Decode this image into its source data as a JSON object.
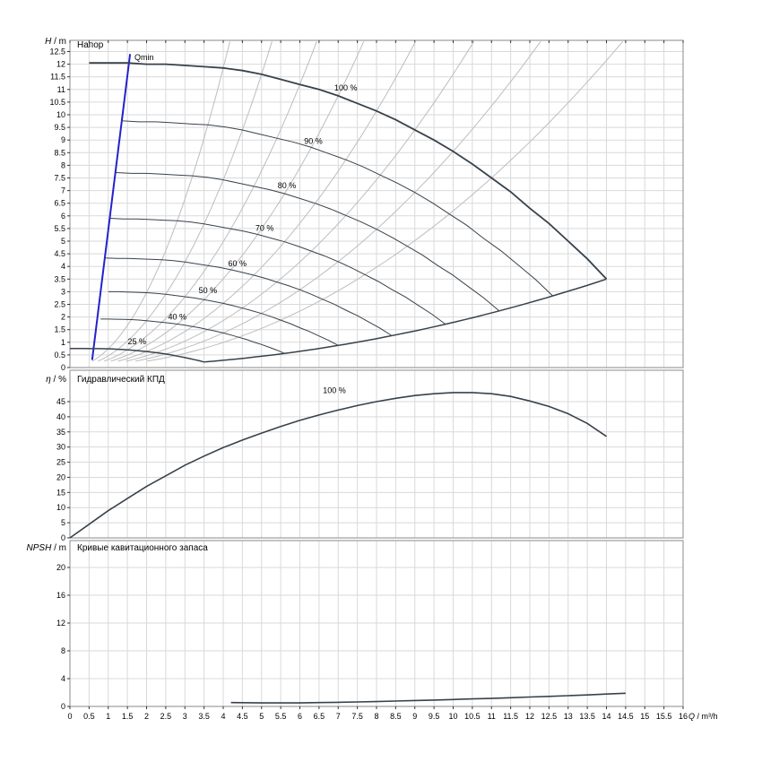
{
  "axis_x": {
    "label_symbol": "Q",
    "label_unit": " / m³/h",
    "min": 0,
    "max": 16,
    "step": 0.5
  },
  "style": {
    "curve_color": "#37424c",
    "grid_color": "#d9d9d9",
    "contour_color": "#bdbdbd",
    "frame_color": "#8a8a8a",
    "qmin_color": "#2222cc",
    "text_color": "#000000"
  },
  "chart_data": [
    {
      "id": "head",
      "type": "line",
      "title": "Напор",
      "ylabel_symbol": "H",
      "ylabel_unit": " / m",
      "ylim": [
        0,
        12.9
      ],
      "ytick_step": 0.5,
      "ytick_max": 12.5,
      "shutoff_head": 12.1,
      "qmin_line": {
        "label": "Qmin",
        "points": [
          [
            0.58,
            0.3
          ],
          [
            1.57,
            12.4
          ]
        ]
      },
      "curve_100": [
        [
          0.5,
          12.05
        ],
        [
          1,
          12.05
        ],
        [
          1.5,
          12.05
        ],
        [
          2,
          12.0
        ],
        [
          2.5,
          12.0
        ],
        [
          3,
          11.95
        ],
        [
          3.5,
          11.9
        ],
        [
          4,
          11.85
        ],
        [
          4.5,
          11.75
        ],
        [
          5,
          11.6
        ],
        [
          5.5,
          11.4
        ],
        [
          6,
          11.2
        ],
        [
          6.5,
          11.0
        ],
        [
          7,
          10.75
        ],
        [
          7.5,
          10.45
        ],
        [
          8,
          10.15
        ],
        [
          8.5,
          9.8
        ],
        [
          9,
          9.4
        ],
        [
          9.5,
          9.0
        ],
        [
          10,
          8.55
        ],
        [
          10.5,
          8.05
        ],
        [
          11,
          7.5
        ],
        [
          11.5,
          6.95
        ],
        [
          12,
          6.3
        ],
        [
          12.5,
          5.7
        ],
        [
          13,
          5.0
        ],
        [
          13.5,
          4.3
        ],
        [
          14,
          3.5
        ]
      ],
      "speed_fractions": [
        0.4,
        0.5,
        0.6,
        0.7,
        0.8,
        0.9
      ],
      "envelope_min_speed": 0.25,
      "envelope_end": [
        14,
        3.5
      ],
      "efficiency_contour_contact_q": [
        4,
        5,
        6,
        7,
        8,
        9,
        10,
        11
      ],
      "speed_labels": [
        {
          "text": "25 %",
          "q": 1.75,
          "h": 0.92
        },
        {
          "text": "40 %",
          "q": 2.8,
          "h": 1.9
        },
        {
          "text": "50 %",
          "q": 3.6,
          "h": 2.95
        },
        {
          "text": "60 %",
          "q": 4.37,
          "h": 4.0
        },
        {
          "text": "70 %",
          "q": 5.08,
          "h": 5.4
        },
        {
          "text": "80 %",
          "q": 5.66,
          "h": 7.1
        },
        {
          "text": "90 %",
          "q": 6.35,
          "h": 8.85
        },
        {
          "text": "100 %",
          "q": 7.2,
          "h": 10.95
        }
      ]
    },
    {
      "id": "efficiency",
      "type": "line",
      "title": "Гидравлический КПД",
      "ylabel_symbol": "η",
      "ylabel_unit": " / %",
      "ylim": [
        0,
        55
      ],
      "ytick_step": 5,
      "ytick_max": 45,
      "curve_label": {
        "text": "100 %",
        "q": 6.9,
        "h": 47.8
      },
      "curve": [
        [
          0,
          0
        ],
        [
          0.5,
          4.5
        ],
        [
          1,
          9
        ],
        [
          1.5,
          13
        ],
        [
          2,
          17
        ],
        [
          2.5,
          20.5
        ],
        [
          3,
          24
        ],
        [
          3.5,
          27
        ],
        [
          4,
          29.8
        ],
        [
          4.5,
          32.3
        ],
        [
          5,
          34.6
        ],
        [
          5.5,
          36.8
        ],
        [
          6,
          38.8
        ],
        [
          6.5,
          40.6
        ],
        [
          7,
          42.2
        ],
        [
          7.5,
          43.7
        ],
        [
          8,
          45
        ],
        [
          8.5,
          46.1
        ],
        [
          9,
          47
        ],
        [
          9.5,
          47.6
        ],
        [
          10,
          48
        ],
        [
          10.5,
          48
        ],
        [
          11,
          47.6
        ],
        [
          11.5,
          46.7
        ],
        [
          12,
          45.2
        ],
        [
          12.5,
          43.4
        ],
        [
          13,
          41
        ],
        [
          13.5,
          37.8
        ],
        [
          14,
          33.5
        ]
      ]
    },
    {
      "id": "npsh",
      "type": "line",
      "title": "Кривые кавитационного запаса",
      "ylabel_symbol": "NPSH",
      "ylabel_unit": " / m",
      "ylim": [
        0,
        24
      ],
      "ytick_step": 4,
      "ytick_max": 20,
      "curve": [
        [
          4.2,
          0.55
        ],
        [
          5,
          0.5
        ],
        [
          5.5,
          0.5
        ],
        [
          6,
          0.5
        ],
        [
          6.5,
          0.55
        ],
        [
          7,
          0.6
        ],
        [
          7.5,
          0.65
        ],
        [
          8,
          0.7
        ],
        [
          8.5,
          0.78
        ],
        [
          9,
          0.85
        ],
        [
          9.5,
          0.92
        ],
        [
          10,
          1.0
        ],
        [
          10.5,
          1.08
        ],
        [
          11,
          1.15
        ],
        [
          11.5,
          1.25
        ],
        [
          12,
          1.35
        ],
        [
          12.5,
          1.45
        ],
        [
          13,
          1.55
        ],
        [
          13.5,
          1.65
        ],
        [
          14,
          1.78
        ],
        [
          14.5,
          1.9
        ]
      ]
    }
  ]
}
